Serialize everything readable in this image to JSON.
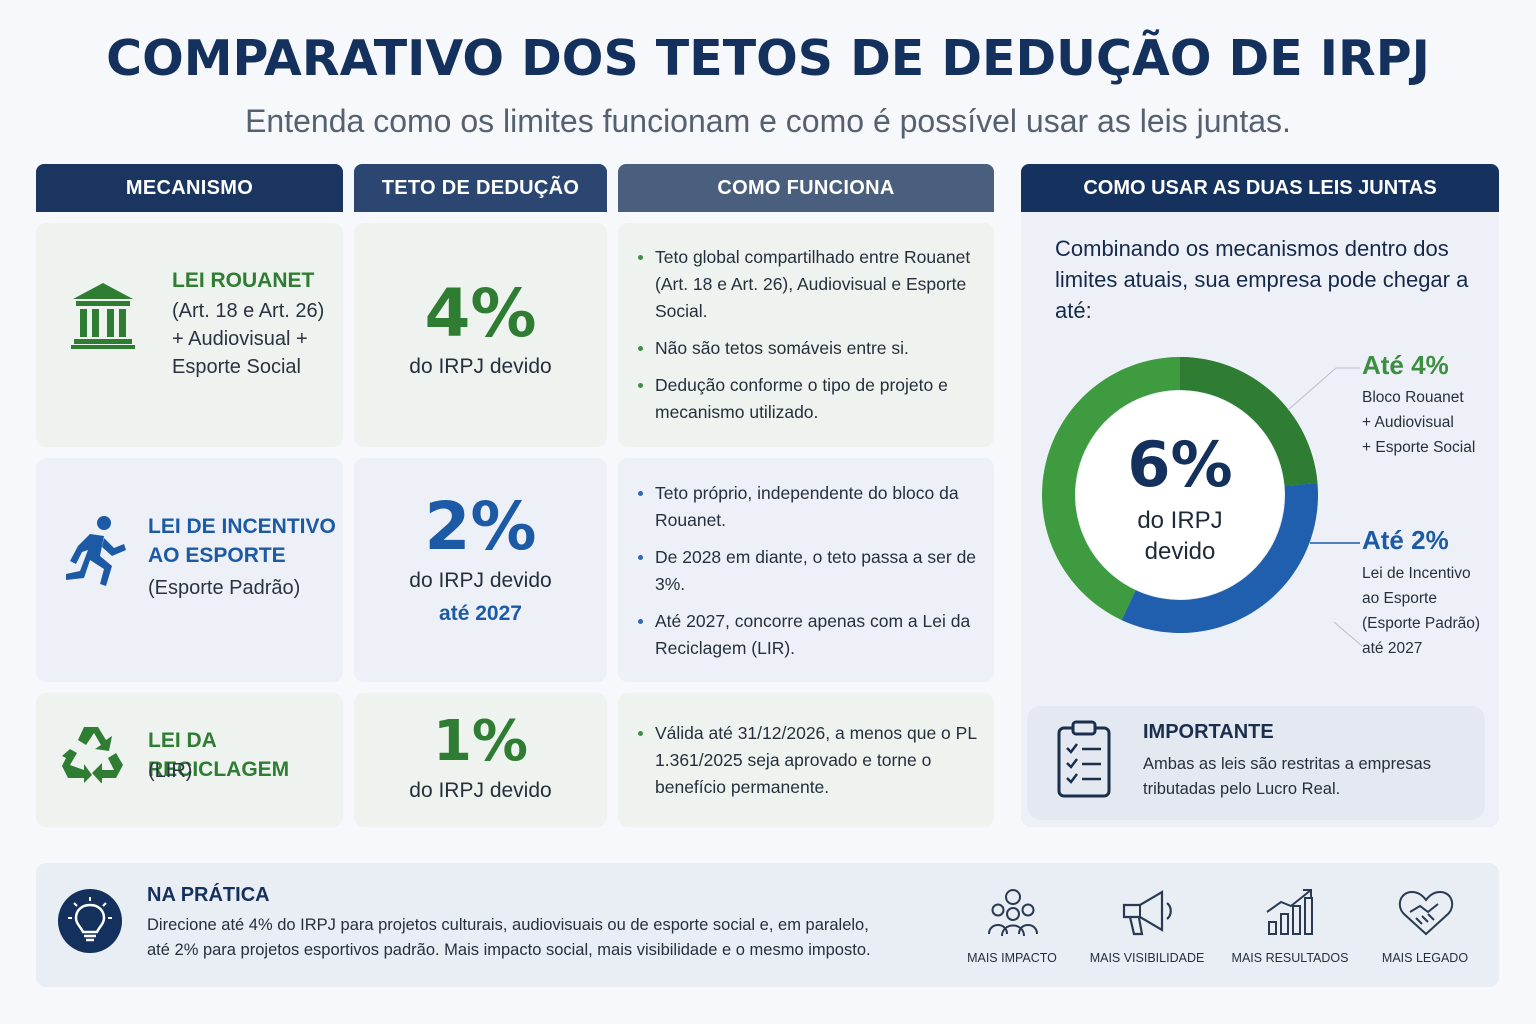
{
  "header": {
    "title": "COMPARATIVO DOS TETOS DE DEDUÇÃO DE IRPJ",
    "subtitle": "Entenda como os limites funcionam e como é possível usar as leis juntas."
  },
  "columns": {
    "mechanism": "MECANISMO",
    "ceiling": "TETO DE DEDUÇÃO",
    "how": "COMO FUNCIONA",
    "together": "COMO USAR AS DUAS LEIS JUNTAS"
  },
  "rows": [
    {
      "icon": "bank-building-icon",
      "title": "LEI ROUANET",
      "sub": [
        "(Art. 18 e Art. 26)",
        "+ Audiovisual +",
        "Esporte Social"
      ],
      "pct": "4%",
      "note": "do IRPJ devido",
      "note2": "",
      "color": "#2f7d32",
      "bullets": [
        "Teto global compartilhado entre Rouanet (Art. 18 e Art. 26), Audiovisual e Esporte Social.",
        "Não são tetos somáveis entre si.",
        "Dedução conforme o tipo de projeto e mecanismo utilizado."
      ]
    },
    {
      "icon": "runner-icon",
      "title_lines": [
        "LEI DE INCENTIVO",
        "AO ESPORTE"
      ],
      "sub": [
        "(Esporte Padrão)"
      ],
      "pct": "2%",
      "note": "do IRPJ devido",
      "note2": "até 2027",
      "color": "#1d5aa5",
      "bullets": [
        "Teto próprio, independente do bloco da Rouanet.",
        "De 2028 em diante, o teto passa a ser de 3%.",
        "Até 2027, concorre apenas com a Lei da Reciclagem (LIR)."
      ]
    },
    {
      "icon": "recycle-icon",
      "title": "LEI DA RECICLAGEM",
      "sub": [
        "(LIR)"
      ],
      "pct": "1%",
      "note": "do IRPJ devido",
      "note2": "",
      "color": "#2f7d32",
      "bullets": [
        "Válida até 31/12/2026, a menos que o PL 1.361/2025 seja aprovado e torne o benefício permanente."
      ]
    }
  ],
  "combine": {
    "intro": "Combinando os mecanismos dentro dos limites atuais, sua empresa pode chegar a até:",
    "center_pct": "6%",
    "center_note_1": "do IRPJ",
    "center_note_2": "devido",
    "legend": [
      {
        "title": "Até 4%",
        "lines": [
          "Bloco Rouanet",
          "+ Audiovisual",
          "+ Esporte Social"
        ],
        "color": "#3e8e41"
      },
      {
        "title": "Até 2%",
        "lines": [
          "Lei de Incentivo",
          "ao Esporte",
          "(Esporte Padrão)",
          "até 2027"
        ],
        "color": "#1d5aa5"
      }
    ]
  },
  "chart_data": {
    "type": "pie",
    "categories": [
      "Até 4%",
      "Até 2%"
    ],
    "values": [
      4,
      2
    ],
    "colors": [
      "#3f9b3f",
      "#1f5fad"
    ]
  },
  "important": {
    "title": "IMPORTANTE",
    "text_1": "Ambas as leis são restritas a empresas",
    "text_2": "tributadas pelo Lucro Real.",
    "icon": "clipboard-checklist-icon"
  },
  "practice": {
    "title": "NA PRÁTICA",
    "line_1": "Direcione até 4% do IRPJ para projetos culturais, audiovisuais ou de esporte social e, em paralelo,",
    "line_2": "até 2% para projetos esportivos padrão. Mais impacto social, mais visibilidade e o mesmo imposto.",
    "icon": "lightbulb-icon",
    "benefits": [
      {
        "label": "MAIS IMPACTO",
        "icon": "people-group-icon"
      },
      {
        "label": "MAIS VISIBILIDADE",
        "icon": "megaphone-icon"
      },
      {
        "label": "MAIS RESULTADOS",
        "icon": "growth-chart-icon"
      },
      {
        "label": "MAIS LEGADO",
        "icon": "handshake-heart-icon"
      }
    ]
  },
  "colors": {
    "navy": "#13315c",
    "green": "#2f7d32",
    "blue": "#1d5aa5"
  }
}
